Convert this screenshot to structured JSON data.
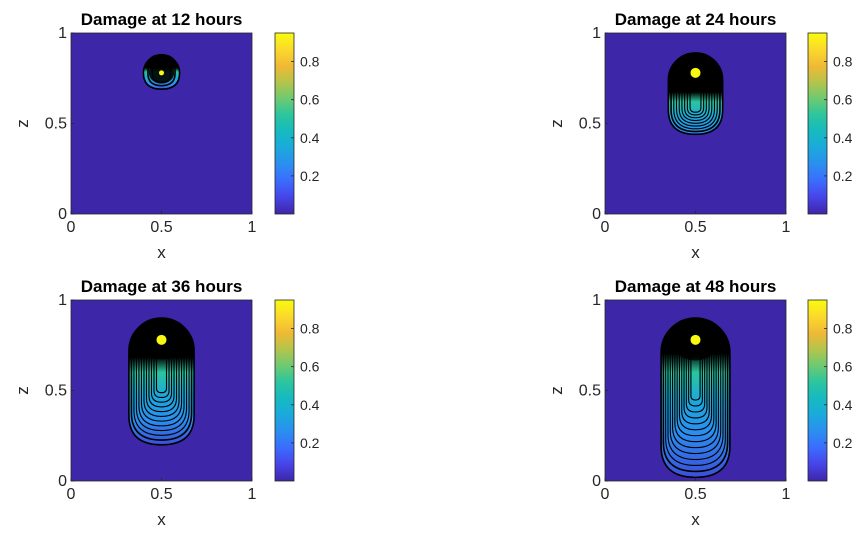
{
  "chart_data": [
    {
      "type": "heatmap",
      "title": "Damage at 12 hours",
      "xlabel": "x",
      "ylabel": "z",
      "xlim": [
        0,
        1
      ],
      "ylim": [
        0,
        1
      ],
      "xticks": [
        "0",
        "0.5",
        "1"
      ],
      "yticks": [
        "0",
        "0.5",
        "1"
      ],
      "colorbar": {
        "range": [
          0,
          0.95
        ],
        "ticks": [
          "0.2",
          "0.4",
          "0.6",
          "0.8"
        ]
      },
      "source_center": {
        "x": 0.5,
        "z": 0.78
      },
      "damage_region": {
        "z_bottom": 0.69,
        "z_top": 0.87,
        "half_width": 0.1,
        "peak_z": 0.78
      },
      "contour_count": 3
    },
    {
      "type": "heatmap",
      "title": "Damage at 24 hours",
      "xlabel": "x",
      "ylabel": "z",
      "xlim": [
        0,
        1
      ],
      "ylim": [
        0,
        1
      ],
      "xticks": [
        "0",
        "0.5",
        "1"
      ],
      "yticks": [
        "0",
        "0.5",
        "1"
      ],
      "colorbar": {
        "range": [
          0,
          0.95
        ],
        "ticks": [
          "0.2",
          "0.4",
          "0.6",
          "0.8"
        ]
      },
      "source_center": {
        "x": 0.5,
        "z": 0.78
      },
      "damage_region": {
        "z_bottom": 0.44,
        "z_top": 0.89,
        "half_width": 0.15,
        "peak_z": 0.62
      },
      "contour_count": 9
    },
    {
      "type": "heatmap",
      "title": "Damage at 36 hours",
      "xlabel": "x",
      "ylabel": "z",
      "xlim": [
        0,
        1
      ],
      "ylim": [
        0,
        1
      ],
      "xticks": [
        "0",
        "0.5",
        "1"
      ],
      "yticks": [
        "0",
        "0.5",
        "1"
      ],
      "colorbar": {
        "range": [
          0,
          0.95
        ],
        "ticks": [
          "0.2",
          "0.4",
          "0.6",
          "0.8"
        ]
      },
      "source_center": {
        "x": 0.5,
        "z": 0.78
      },
      "damage_region": {
        "z_bottom": 0.2,
        "z_top": 0.9,
        "half_width": 0.18,
        "peak_z": 0.6
      },
      "contour_count": 12
    },
    {
      "type": "heatmap",
      "title": "Damage at 48 hours",
      "xlabel": "x",
      "ylabel": "z",
      "xlim": [
        0,
        1
      ],
      "ylim": [
        0,
        1
      ],
      "xticks": [
        "0",
        "0.5",
        "1"
      ],
      "yticks": [
        "0",
        "0.5",
        "1"
      ],
      "colorbar": {
        "range": [
          0,
          0.95
        ],
        "ticks": [
          "0.2",
          "0.4",
          "0.6",
          "0.8"
        ]
      },
      "source_center": {
        "x": 0.5,
        "z": 0.78
      },
      "damage_region": {
        "z_bottom": 0.02,
        "z_top": 0.9,
        "half_width": 0.19,
        "peak_z": 0.6
      },
      "contour_count": 14
    }
  ],
  "colors": {
    "background": "#3d26a8",
    "source": "#f9f90f",
    "contour": "#000000",
    "colormap": [
      "#3e26a8",
      "#4743e8",
      "#3b6bfe",
      "#2b8ef0",
      "#1ba9dc",
      "#15bac1",
      "#2bc59f",
      "#6cca73",
      "#b4c44b",
      "#f0b934",
      "#fbd92c",
      "#f9fb0e"
    ]
  }
}
